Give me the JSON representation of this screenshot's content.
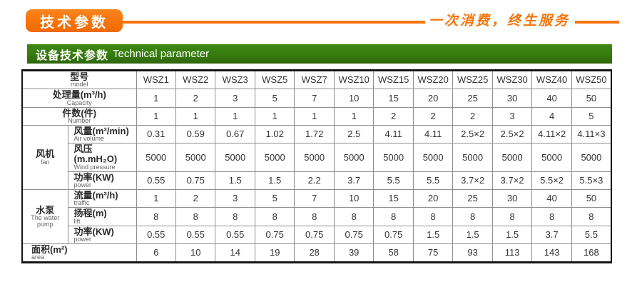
{
  "topbar": {
    "badge_label": "技术参数",
    "slogan": "一次消费，终生服务"
  },
  "section_header": {
    "title_zh": "设备技术参数",
    "title_en": "Technical parameter"
  },
  "colors": {
    "accent_orange": "#f7740a",
    "header_green": "#36790e"
  },
  "chart_data": {
    "type": "table",
    "title": "设备技术参数 Technical parameter",
    "header": {
      "label_zh": "型号",
      "label_en": "model",
      "models": [
        "WSZ1",
        "WSZ2",
        "WSZ3",
        "WSZ5",
        "WSZ7",
        "WSZ10",
        "WSZ15",
        "WSZ20",
        "WSZ25",
        "WSZ30",
        "WSZ40",
        "WSZ50"
      ]
    },
    "rows": [
      {
        "kind": "full",
        "zh": "处理量(m³/h)",
        "en": "Capacity",
        "values": [
          "1",
          "2",
          "3",
          "5",
          "7",
          "10",
          "15",
          "20",
          "25",
          "30",
          "40",
          "50"
        ]
      },
      {
        "kind": "full",
        "zh": "件数(件)",
        "en": "Number",
        "values": [
          "1",
          "1",
          "1",
          "1",
          "1",
          "1",
          "2",
          "2",
          "2",
          "3",
          "4",
          "5"
        ]
      },
      {
        "kind": "group",
        "group_zh": "风机",
        "group_en": "fan",
        "group_span": 3,
        "zh": "风量(m³/min)",
        "en": "Air volume",
        "values": [
          "0.31",
          "0.59",
          "0.67",
          "1.02",
          "1.72",
          "2.5",
          "4.11",
          "4.11",
          "2.5×2",
          "2.5×2",
          "4.11×2",
          "4.11×3"
        ]
      },
      {
        "kind": "sub",
        "zh": "风压(m.mH₂O)",
        "en": "Wind pressure",
        "values": [
          "5000",
          "5000",
          "5000",
          "5000",
          "5000",
          "5000",
          "5000",
          "5000",
          "5000",
          "5000",
          "5000",
          "5000"
        ]
      },
      {
        "kind": "sub",
        "zh": "功率(KW)",
        "en": "power",
        "values": [
          "0.55",
          "0.75",
          "1.5",
          "1.5",
          "2.2",
          "3.7",
          "5.5",
          "5.5",
          "3.7×2",
          "3.7×2",
          "5.5×2",
          "5.5×3"
        ]
      },
      {
        "kind": "group",
        "group_zh": "水泵",
        "group_en": "The water pump",
        "group_span": 3,
        "zh": "流量(m³/h)",
        "en": "traffic",
        "values": [
          "1",
          "2",
          "3",
          "5",
          "7",
          "10",
          "15",
          "20",
          "25",
          "30",
          "40",
          "50"
        ]
      },
      {
        "kind": "sub",
        "zh": "扬程(m)",
        "en": "lift",
        "values": [
          "8",
          "8",
          "8",
          "8",
          "8",
          "8",
          "8",
          "8",
          "8",
          "8",
          "8",
          "8"
        ]
      },
      {
        "kind": "sub",
        "zh": "功率(KW)",
        "en": "power",
        "values": [
          "0.55",
          "0.55",
          "0.55",
          "0.75",
          "0.75",
          "0.75",
          "0.75",
          "1.5",
          "1.5",
          "1.5",
          "3.7",
          "5.5"
        ]
      },
      {
        "kind": "full-left",
        "zh": "面积(m²)",
        "en": "area",
        "values": [
          "6",
          "10",
          "14",
          "19",
          "28",
          "39",
          "58",
          "75",
          "93",
          "113",
          "143",
          "168"
        ]
      }
    ]
  }
}
